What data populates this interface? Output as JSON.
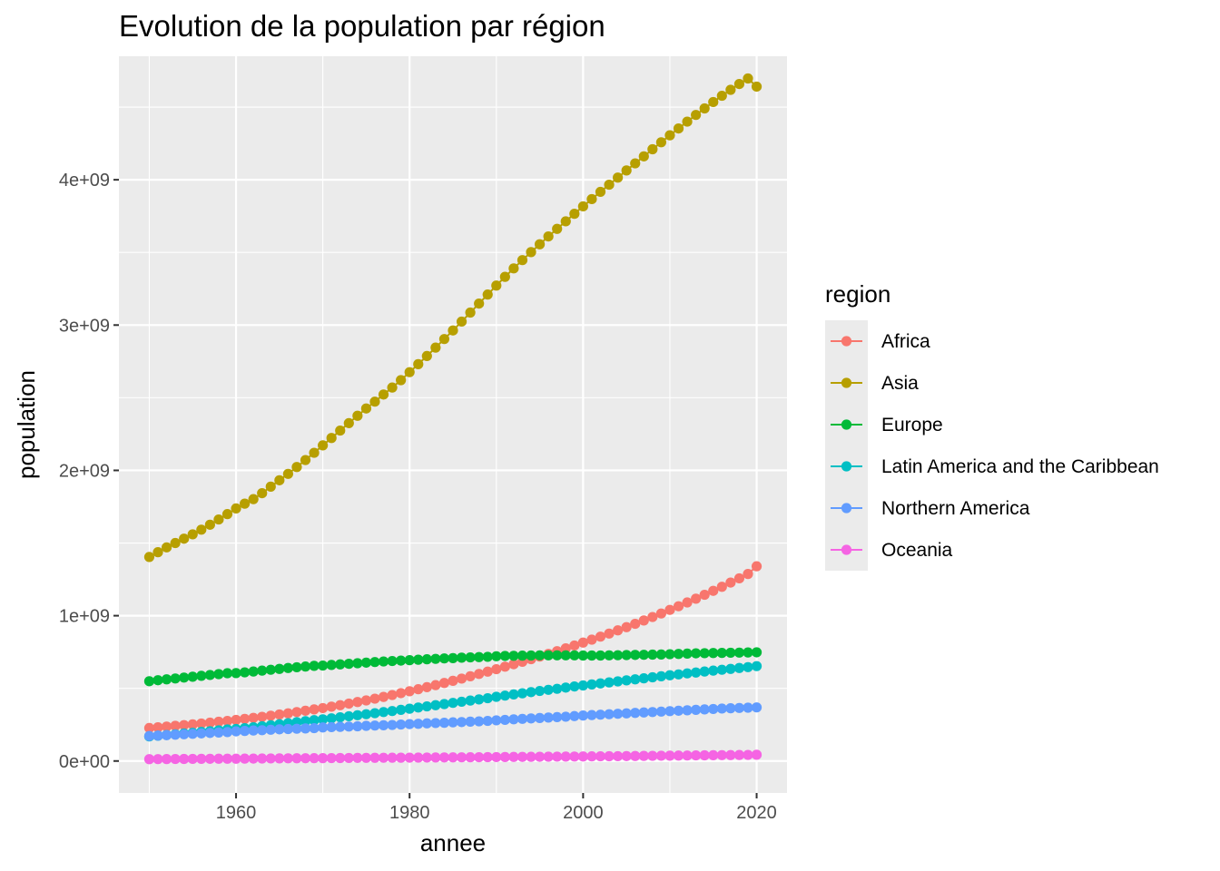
{
  "chart_data": {
    "type": "line",
    "title": "Evolution de la population par région",
    "xlabel": "annee",
    "ylabel": "population",
    "xlim": [
      1946.5,
      2023.5
    ],
    "ylim": [
      -220000000,
      4850000000
    ],
    "x_ticks": [
      1960,
      1980,
      2000,
      2020
    ],
    "x_tick_labels": [
      "1960",
      "1980",
      "2000",
      "2020"
    ],
    "y_ticks": [
      0,
      1000000000,
      2000000000,
      3000000000,
      4000000000
    ],
    "y_tick_labels": [
      "0e+00",
      "1e+09",
      "2e+09",
      "3e+09",
      "4e+09"
    ],
    "grid": true,
    "markers": "points",
    "legend_title": "region",
    "legend_position": "right",
    "x": [
      1950,
      1951,
      1952,
      1953,
      1954,
      1955,
      1956,
      1957,
      1958,
      1959,
      1960,
      1961,
      1962,
      1963,
      1964,
      1965,
      1966,
      1967,
      1968,
      1969,
      1970,
      1971,
      1972,
      1973,
      1974,
      1975,
      1976,
      1977,
      1978,
      1979,
      1980,
      1981,
      1982,
      1983,
      1984,
      1985,
      1986,
      1987,
      1988,
      1989,
      1990,
      1991,
      1992,
      1993,
      1994,
      1995,
      1996,
      1997,
      1998,
      1999,
      2000,
      2001,
      2002,
      2003,
      2004,
      2005,
      2006,
      2007,
      2008,
      2009,
      2010,
      2011,
      2012,
      2013,
      2014,
      2015,
      2016,
      2017,
      2018,
      2019,
      2020
    ],
    "series": [
      {
        "name": "Africa",
        "color": "#F8766D",
        "values": [
          227000000,
          232000000,
          237000000,
          242000000,
          247000000,
          252000000,
          258000000,
          264000000,
          270000000,
          276000000,
          283000000,
          290000000,
          297000000,
          304000000,
          312000000,
          320000000,
          328000000,
          337000000,
          346000000,
          355000000,
          364000000,
          374000000,
          384000000,
          395000000,
          406000000,
          417000000,
          429000000,
          441000000,
          454000000,
          467000000,
          480000000,
          494000000,
          508000000,
          522000000,
          537000000,
          552000000,
          567000000,
          583000000,
          599000000,
          615000000,
          632000000,
          649000000,
          666000000,
          683000000,
          701000000,
          719000000,
          737000000,
          756000000,
          775000000,
          795000000,
          815000000,
          835000000,
          856000000,
          877000000,
          899000000,
          921000000,
          944000000,
          967000000,
          991000000,
          1015000000,
          1040000000,
          1065000000,
          1091000000,
          1117000000,
          1144000000,
          1171000000,
          1199000000,
          1228000000,
          1257000000,
          1287000000,
          1340000000
        ]
      },
      {
        "name": "Asia",
        "color": "#B79F00",
        "values": [
          1404000000,
          1437000000,
          1470000000,
          1500000000,
          1530000000,
          1560000000,
          1592000000,
          1626000000,
          1662000000,
          1699000000,
          1738000000,
          1771000000,
          1802000000,
          1843000000,
          1888000000,
          1932000000,
          1976000000,
          2023000000,
          2071000000,
          2121000000,
          2172000000,
          2223000000,
          2274000000,
          2325000000,
          2376000000,
          2426000000,
          2473000000,
          2522000000,
          2570000000,
          2621000000,
          2676000000,
          2731000000,
          2787000000,
          2845000000,
          2904000000,
          2963000000,
          3024000000,
          3086000000,
          3148000000,
          3210000000,
          3272000000,
          3332000000,
          3390000000,
          3447000000,
          3502000000,
          3556000000,
          3610000000,
          3662000000,
          3714000000,
          3766000000,
          3817000000,
          3867000000,
          3917000000,
          3966000000,
          4015000000,
          4064000000,
          4113000000,
          4161000000,
          4210000000,
          4258000000,
          4306000000,
          4353000000,
          4400000000,
          4446000000,
          4491000000,
          4535000000,
          4578000000,
          4619000000,
          4659000000,
          4697000000,
          4641000000
        ]
      },
      {
        "name": "Europe",
        "color": "#00BA38",
        "values": [
          549000000,
          556000000,
          562000000,
          568000000,
          574000000,
          580000000,
          586000000,
          592000000,
          598000000,
          604000000,
          605000000,
          610000000,
          616000000,
          622000000,
          628000000,
          634000000,
          640000000,
          645000000,
          650000000,
          655000000,
          657000000,
          661000000,
          665000000,
          669000000,
          673000000,
          677000000,
          681000000,
          685000000,
          688000000,
          691000000,
          694000000,
          697000000,
          700000000,
          703000000,
          706000000,
          708000000,
          711000000,
          713000000,
          715000000,
          717000000,
          721000000,
          723000000,
          724000000,
          725000000,
          726000000,
          727000000,
          727000000,
          727000000,
          727000000,
          727000000,
          726000000,
          726000000,
          726000000,
          727000000,
          728000000,
          729000000,
          730000000,
          731000000,
          732000000,
          733000000,
          735000000,
          737000000,
          739000000,
          741000000,
          742000000,
          743000000,
          744000000,
          745000000,
          746000000,
          747000000,
          748000000
        ]
      },
      {
        "name": "Latin America and the Caribbean",
        "color": "#00BFC4",
        "values": [
          169000000,
          174000000,
          179000000,
          184000000,
          189000000,
          194000000,
          200000000,
          205000000,
          211000000,
          217000000,
          220000000,
          226000000,
          232000000,
          239000000,
          246000000,
          253000000,
          260000000,
          267000000,
          274000000,
          281000000,
          287000000,
          294000000,
          301000000,
          308000000,
          315000000,
          322000000,
          329000000,
          337000000,
          344000000,
          352000000,
          360000000,
          368000000,
          376000000,
          384000000,
          392000000,
          400000000,
          408000000,
          416000000,
          424000000,
          432000000,
          442000000,
          450000000,
          458000000,
          466000000,
          474000000,
          482000000,
          490000000,
          497000000,
          505000000,
          513000000,
          520000000,
          527000000,
          534000000,
          541000000,
          548000000,
          555000000,
          562000000,
          569000000,
          576000000,
          583000000,
          590000000,
          596000000,
          603000000,
          609000000,
          616000000,
          622000000,
          628000000,
          634000000,
          640000000,
          646000000,
          653000000
        ]
      },
      {
        "name": "Northern America",
        "color": "#619CFF",
        "values": [
          172000000,
          175000000,
          178000000,
          181000000,
          184000000,
          187000000,
          190000000,
          193000000,
          196000000,
          199000000,
          204000000,
          207000000,
          210000000,
          212000000,
          215000000,
          218000000,
          220000000,
          222000000,
          224000000,
          226000000,
          231000000,
          233000000,
          235000000,
          237000000,
          239000000,
          242000000,
          244000000,
          246000000,
          248000000,
          251000000,
          254000000,
          256000000,
          259000000,
          261000000,
          263000000,
          266000000,
          268000000,
          271000000,
          273000000,
          276000000,
          280000000,
          283000000,
          287000000,
          290000000,
          293000000,
          296000000,
          299000000,
          302000000,
          305000000,
          309000000,
          313000000,
          316000000,
          319000000,
          322000000,
          325000000,
          328000000,
          331000000,
          334000000,
          337000000,
          340000000,
          343000000,
          346000000,
          349000000,
          352000000,
          355000000,
          358000000,
          361000000,
          363000000,
          365000000,
          367000000,
          369000000
        ]
      },
      {
        "name": "Oceania",
        "color": "#F564E3",
        "values": [
          12700000,
          13000000,
          13400000,
          13700000,
          14100000,
          14400000,
          14800000,
          15100000,
          15500000,
          15800000,
          15800000,
          16300000,
          16700000,
          17100000,
          17500000,
          17900000,
          18300000,
          18700000,
          19000000,
          19400000,
          19700000,
          20100000,
          20500000,
          20900000,
          21300000,
          21600000,
          21900000,
          22200000,
          22500000,
          22800000,
          22900000,
          23300000,
          23700000,
          24100000,
          24500000,
          24900000,
          25300000,
          25700000,
          26100000,
          26500000,
          27000000,
          27500000,
          28000000,
          28400000,
          28800000,
          29200000,
          29600000,
          30000000,
          30400000,
          30900000,
          31400000,
          31900000,
          32400000,
          32900000,
          33400000,
          33900000,
          34500000,
          35100000,
          35700000,
          36300000,
          36800000,
          37400000,
          38000000,
          38600000,
          39200000,
          39700000,
          40300000,
          40800000,
          41300000,
          41800000,
          43000000
        ]
      }
    ]
  }
}
